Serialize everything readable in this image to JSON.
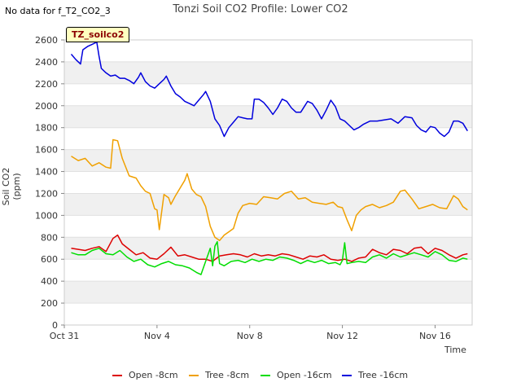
{
  "note": "No data for f_T2_CO2_3",
  "tag": "TZ_soilco2",
  "chart_data": {
    "type": "line",
    "title": "Tonzi Soil CO2 Profile: Lower CO2",
    "xlabel": "Time",
    "ylabel": "Soil CO2 (ppm)",
    "ylim": [
      0,
      2600
    ],
    "xlim": [
      0,
      17.6
    ],
    "yticks": [
      0,
      200,
      400,
      600,
      800,
      1000,
      1200,
      1400,
      1600,
      1800,
      2000,
      2200,
      2400,
      2600
    ],
    "xticks": [
      {
        "x": 0,
        "label": "Oct 31"
      },
      {
        "x": 4,
        "label": "Nov 4"
      },
      {
        "x": 8,
        "label": "Nov 8"
      },
      {
        "x": 12,
        "label": "Nov 12"
      },
      {
        "x": 16,
        "label": "Nov 16"
      }
    ],
    "x_unit": "days since Oct 31",
    "grid": "horizontal bands",
    "legend_position": "bottom",
    "series": [
      {
        "name": "Open -8cm",
        "color": "#dd0000",
        "points": [
          [
            0.3,
            700
          ],
          [
            0.6,
            690
          ],
          [
            0.9,
            680
          ],
          [
            1.2,
            700
          ],
          [
            1.5,
            715
          ],
          [
            1.8,
            670
          ],
          [
            2.1,
            790
          ],
          [
            2.3,
            820
          ],
          [
            2.5,
            740
          ],
          [
            2.8,
            690
          ],
          [
            3.1,
            640
          ],
          [
            3.4,
            660
          ],
          [
            3.7,
            610
          ],
          [
            4.0,
            600
          ],
          [
            4.3,
            650
          ],
          [
            4.6,
            710
          ],
          [
            4.9,
            630
          ],
          [
            5.2,
            640
          ],
          [
            5.5,
            620
          ],
          [
            5.8,
            600
          ],
          [
            6.1,
            600
          ],
          [
            6.4,
            580
          ],
          [
            6.7,
            630
          ],
          [
            7.0,
            640
          ],
          [
            7.3,
            650
          ],
          [
            7.6,
            640
          ],
          [
            7.9,
            620
          ],
          [
            8.2,
            650
          ],
          [
            8.5,
            630
          ],
          [
            8.8,
            640
          ],
          [
            9.1,
            630
          ],
          [
            9.4,
            650
          ],
          [
            9.7,
            640
          ],
          [
            10.0,
            620
          ],
          [
            10.3,
            600
          ],
          [
            10.6,
            630
          ],
          [
            10.9,
            620
          ],
          [
            11.2,
            640
          ],
          [
            11.5,
            600
          ],
          [
            11.8,
            590
          ],
          [
            12.1,
            600
          ],
          [
            12.4,
            580
          ],
          [
            12.7,
            610
          ],
          [
            13.0,
            620
          ],
          [
            13.3,
            690
          ],
          [
            13.6,
            660
          ],
          [
            13.9,
            640
          ],
          [
            14.2,
            690
          ],
          [
            14.5,
            680
          ],
          [
            14.8,
            650
          ],
          [
            15.1,
            700
          ],
          [
            15.4,
            710
          ],
          [
            15.7,
            650
          ],
          [
            16.0,
            700
          ],
          [
            16.3,
            680
          ],
          [
            16.6,
            640
          ],
          [
            16.9,
            610
          ],
          [
            17.2,
            640
          ],
          [
            17.4,
            650
          ]
        ]
      },
      {
        "name": "Tree -8cm",
        "color": "#f0a000",
        "points": [
          [
            0.3,
            1540
          ],
          [
            0.6,
            1500
          ],
          [
            0.9,
            1520
          ],
          [
            1.2,
            1450
          ],
          [
            1.5,
            1480
          ],
          [
            1.8,
            1440
          ],
          [
            2.0,
            1430
          ],
          [
            2.1,
            1690
          ],
          [
            2.3,
            1680
          ],
          [
            2.5,
            1520
          ],
          [
            2.8,
            1360
          ],
          [
            3.1,
            1340
          ],
          [
            3.3,
            1270
          ],
          [
            3.5,
            1220
          ],
          [
            3.7,
            1200
          ],
          [
            3.9,
            1060
          ],
          [
            4.0,
            1050
          ],
          [
            4.1,
            870
          ],
          [
            4.3,
            1190
          ],
          [
            4.5,
            1160
          ],
          [
            4.6,
            1100
          ],
          [
            4.8,
            1180
          ],
          [
            5.0,
            1250
          ],
          [
            5.2,
            1320
          ],
          [
            5.3,
            1380
          ],
          [
            5.5,
            1240
          ],
          [
            5.7,
            1190
          ],
          [
            5.9,
            1170
          ],
          [
            6.1,
            1080
          ],
          [
            6.3,
            900
          ],
          [
            6.5,
            800
          ],
          [
            6.7,
            770
          ],
          [
            6.9,
            820
          ],
          [
            7.1,
            850
          ],
          [
            7.3,
            880
          ],
          [
            7.5,
            1020
          ],
          [
            7.7,
            1090
          ],
          [
            8.0,
            1110
          ],
          [
            8.3,
            1100
          ],
          [
            8.6,
            1170
          ],
          [
            8.9,
            1160
          ],
          [
            9.2,
            1150
          ],
          [
            9.5,
            1200
          ],
          [
            9.8,
            1220
          ],
          [
            10.1,
            1150
          ],
          [
            10.4,
            1160
          ],
          [
            10.7,
            1120
          ],
          [
            11.0,
            1110
          ],
          [
            11.3,
            1100
          ],
          [
            11.6,
            1120
          ],
          [
            11.8,
            1080
          ],
          [
            12.0,
            1070
          ],
          [
            12.2,
            960
          ],
          [
            12.4,
            860
          ],
          [
            12.6,
            1000
          ],
          [
            12.8,
            1050
          ],
          [
            13.0,
            1080
          ],
          [
            13.3,
            1100
          ],
          [
            13.6,
            1070
          ],
          [
            13.9,
            1090
          ],
          [
            14.2,
            1120
          ],
          [
            14.5,
            1220
          ],
          [
            14.7,
            1230
          ],
          [
            15.0,
            1150
          ],
          [
            15.3,
            1060
          ],
          [
            15.6,
            1080
          ],
          [
            15.9,
            1100
          ],
          [
            16.2,
            1070
          ],
          [
            16.5,
            1060
          ],
          [
            16.8,
            1180
          ],
          [
            17.0,
            1150
          ],
          [
            17.2,
            1080
          ],
          [
            17.4,
            1050
          ]
        ]
      },
      {
        "name": "Open -16cm",
        "color": "#00dd00",
        "points": [
          [
            0.3,
            660
          ],
          [
            0.6,
            640
          ],
          [
            0.9,
            640
          ],
          [
            1.2,
            680
          ],
          [
            1.5,
            700
          ],
          [
            1.8,
            650
          ],
          [
            2.1,
            640
          ],
          [
            2.4,
            680
          ],
          [
            2.7,
            620
          ],
          [
            3.0,
            580
          ],
          [
            3.3,
            600
          ],
          [
            3.6,
            550
          ],
          [
            3.9,
            530
          ],
          [
            4.2,
            560
          ],
          [
            4.5,
            580
          ],
          [
            4.8,
            550
          ],
          [
            5.1,
            540
          ],
          [
            5.4,
            520
          ],
          [
            5.7,
            480
          ],
          [
            5.9,
            460
          ],
          [
            6.1,
            580
          ],
          [
            6.3,
            700
          ],
          [
            6.4,
            540
          ],
          [
            6.5,
            720
          ],
          [
            6.6,
            760
          ],
          [
            6.7,
            560
          ],
          [
            6.9,
            540
          ],
          [
            7.2,
            580
          ],
          [
            7.5,
            590
          ],
          [
            7.8,
            570
          ],
          [
            8.1,
            600
          ],
          [
            8.4,
            580
          ],
          [
            8.7,
            600
          ],
          [
            9.0,
            590
          ],
          [
            9.3,
            620
          ],
          [
            9.6,
            610
          ],
          [
            9.9,
            590
          ],
          [
            10.2,
            560
          ],
          [
            10.5,
            590
          ],
          [
            10.8,
            570
          ],
          [
            11.1,
            590
          ],
          [
            11.4,
            560
          ],
          [
            11.7,
            570
          ],
          [
            11.9,
            550
          ],
          [
            12.0,
            590
          ],
          [
            12.1,
            750
          ],
          [
            12.2,
            560
          ],
          [
            12.4,
            570
          ],
          [
            12.7,
            580
          ],
          [
            13.0,
            570
          ],
          [
            13.3,
            620
          ],
          [
            13.6,
            640
          ],
          [
            13.9,
            610
          ],
          [
            14.2,
            650
          ],
          [
            14.5,
            620
          ],
          [
            14.8,
            640
          ],
          [
            15.1,
            660
          ],
          [
            15.4,
            640
          ],
          [
            15.7,
            620
          ],
          [
            16.0,
            670
          ],
          [
            16.3,
            640
          ],
          [
            16.6,
            590
          ],
          [
            16.9,
            580
          ],
          [
            17.2,
            610
          ],
          [
            17.4,
            600
          ]
        ]
      },
      {
        "name": "Tree -16cm",
        "color": "#0000dd",
        "points": [
          [
            0.3,
            2470
          ],
          [
            0.5,
            2420
          ],
          [
            0.7,
            2380
          ],
          [
            0.8,
            2510
          ],
          [
            1.0,
            2540
          ],
          [
            1.2,
            2560
          ],
          [
            1.4,
            2580
          ],
          [
            1.5,
            2450
          ],
          [
            1.6,
            2340
          ],
          [
            1.8,
            2300
          ],
          [
            2.0,
            2270
          ],
          [
            2.2,
            2280
          ],
          [
            2.4,
            2250
          ],
          [
            2.6,
            2250
          ],
          [
            2.8,
            2230
          ],
          [
            3.0,
            2200
          ],
          [
            3.2,
            2260
          ],
          [
            3.3,
            2300
          ],
          [
            3.5,
            2220
          ],
          [
            3.7,
            2180
          ],
          [
            3.9,
            2160
          ],
          [
            4.1,
            2200
          ],
          [
            4.3,
            2240
          ],
          [
            4.4,
            2270
          ],
          [
            4.6,
            2180
          ],
          [
            4.8,
            2110
          ],
          [
            5.0,
            2080
          ],
          [
            5.2,
            2040
          ],
          [
            5.4,
            2020
          ],
          [
            5.6,
            2000
          ],
          [
            5.8,
            2050
          ],
          [
            6.0,
            2100
          ],
          [
            6.1,
            2130
          ],
          [
            6.3,
            2040
          ],
          [
            6.5,
            1880
          ],
          [
            6.7,
            1820
          ],
          [
            6.9,
            1720
          ],
          [
            7.1,
            1800
          ],
          [
            7.3,
            1850
          ],
          [
            7.5,
            1900
          ],
          [
            7.7,
            1890
          ],
          [
            7.9,
            1880
          ],
          [
            8.1,
            1880
          ],
          [
            8.2,
            2060
          ],
          [
            8.4,
            2060
          ],
          [
            8.6,
            2030
          ],
          [
            8.8,
            1980
          ],
          [
            9.0,
            1920
          ],
          [
            9.2,
            1980
          ],
          [
            9.4,
            2060
          ],
          [
            9.6,
            2040
          ],
          [
            9.8,
            1980
          ],
          [
            10.0,
            1940
          ],
          [
            10.2,
            1940
          ],
          [
            10.5,
            2040
          ],
          [
            10.7,
            2020
          ],
          [
            10.9,
            1960
          ],
          [
            11.1,
            1880
          ],
          [
            11.3,
            1960
          ],
          [
            11.5,
            2050
          ],
          [
            11.7,
            1990
          ],
          [
            11.9,
            1880
          ],
          [
            12.1,
            1860
          ],
          [
            12.3,
            1820
          ],
          [
            12.5,
            1780
          ],
          [
            12.7,
            1800
          ],
          [
            12.9,
            1830
          ],
          [
            13.2,
            1860
          ],
          [
            13.5,
            1860
          ],
          [
            13.8,
            1870
          ],
          [
            14.1,
            1880
          ],
          [
            14.4,
            1840
          ],
          [
            14.7,
            1900
          ],
          [
            15.0,
            1890
          ],
          [
            15.2,
            1820
          ],
          [
            15.4,
            1780
          ],
          [
            15.6,
            1760
          ],
          [
            15.8,
            1810
          ],
          [
            16.0,
            1800
          ],
          [
            16.2,
            1750
          ],
          [
            16.4,
            1720
          ],
          [
            16.6,
            1760
          ],
          [
            16.8,
            1860
          ],
          [
            17.0,
            1860
          ],
          [
            17.2,
            1840
          ],
          [
            17.4,
            1770
          ]
        ]
      }
    ]
  }
}
